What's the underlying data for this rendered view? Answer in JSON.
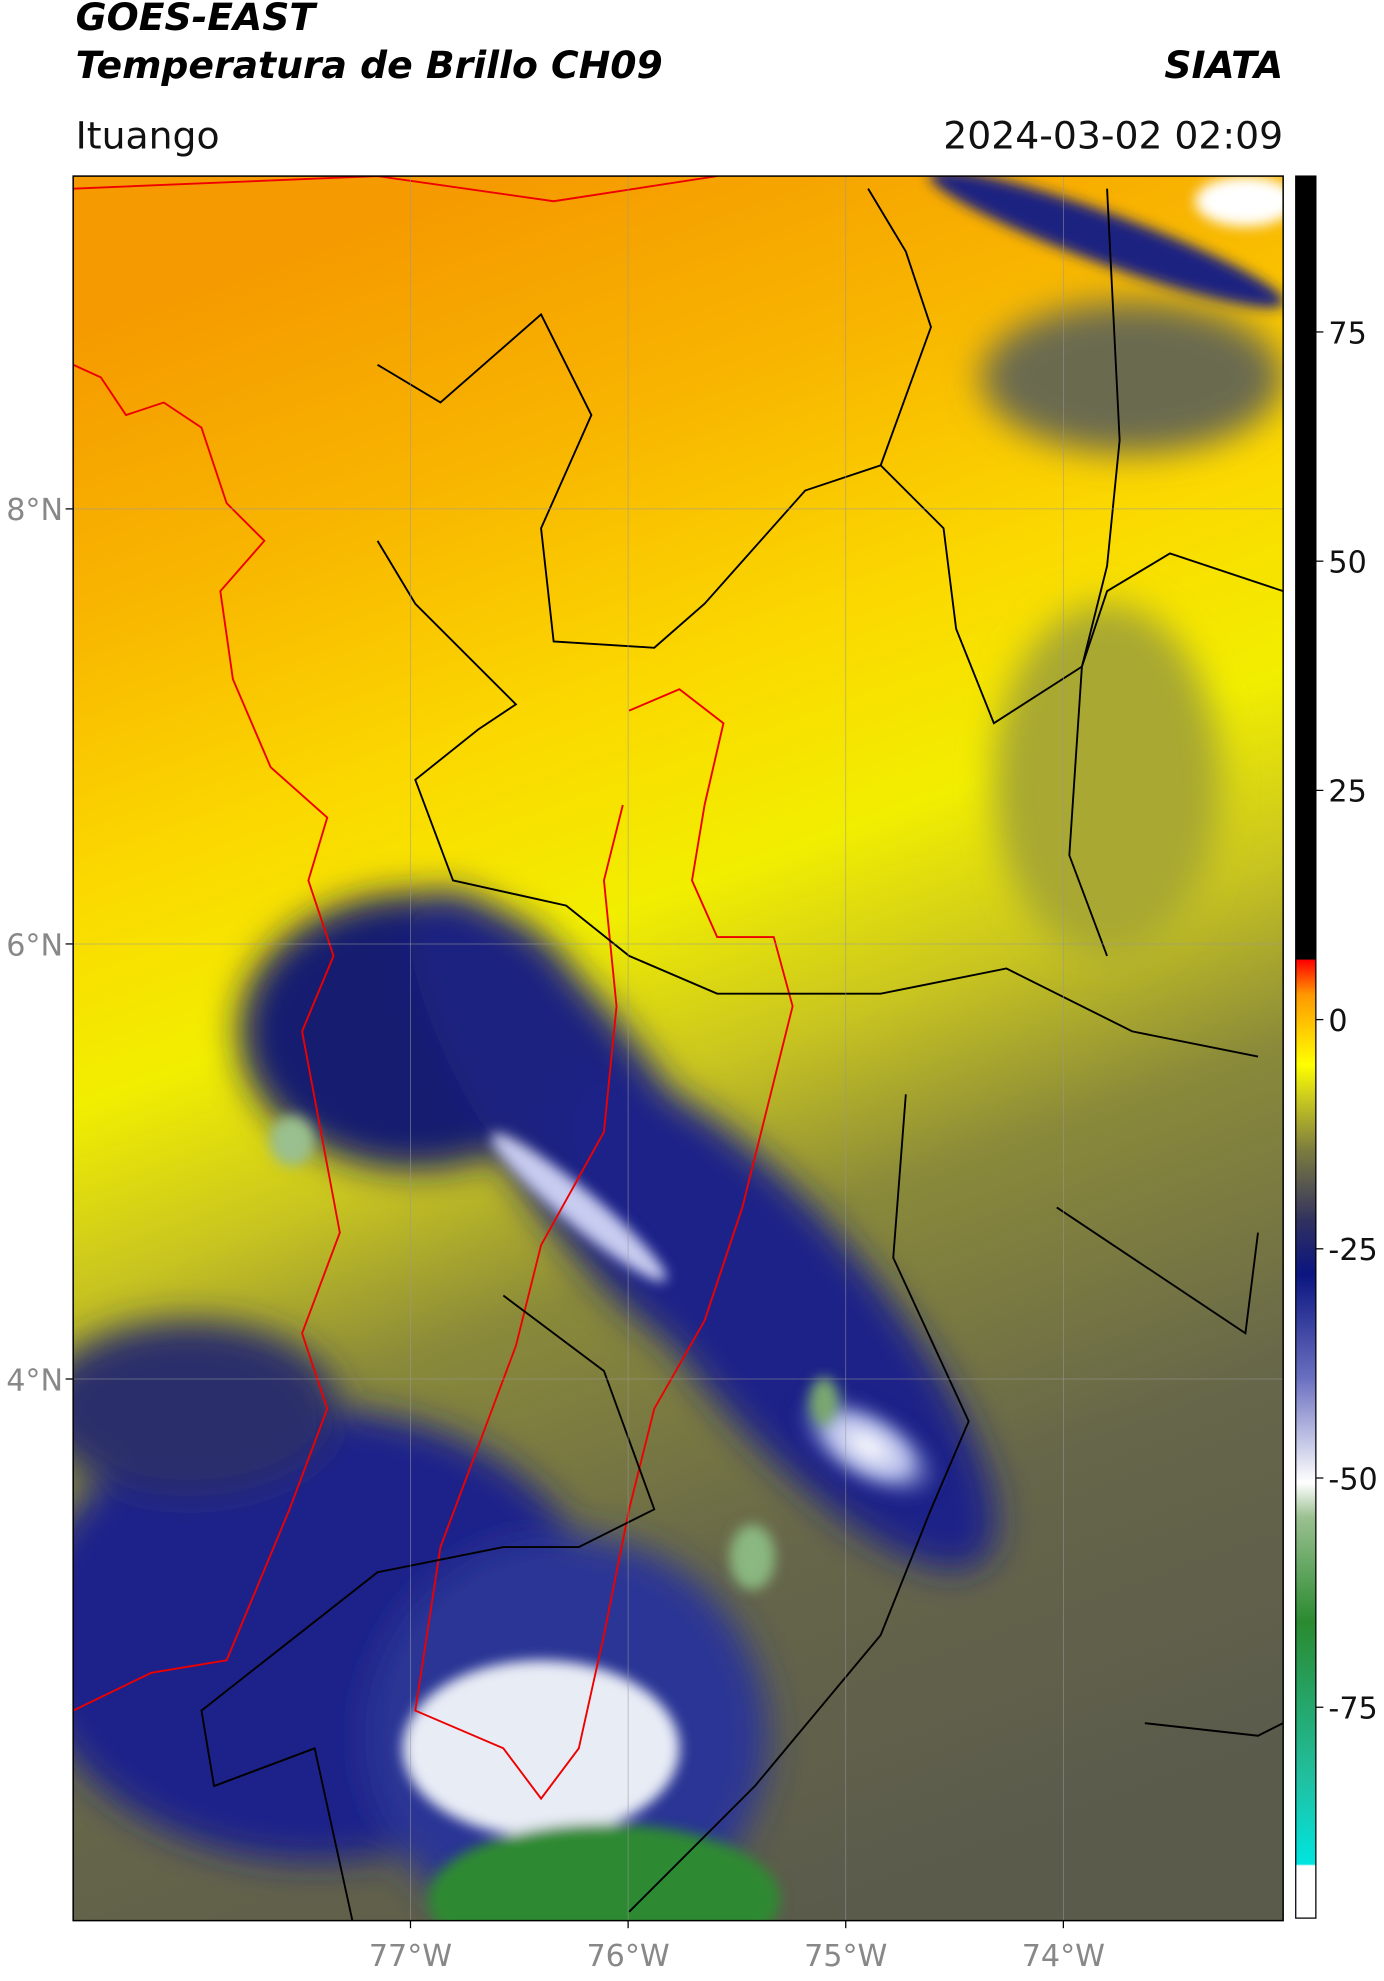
{
  "header": {
    "title": "GOES-EAST",
    "subtitle": "Temperatura de Brillo CH09",
    "source": "SIATA",
    "region": "Ituango",
    "timestamp": "2024-03-02 02:09"
  },
  "map": {
    "xlim": [
      -78.55,
      -72.99
    ],
    "ylim": [
      1.51,
      9.53
    ],
    "xticks": [
      {
        "value": -77,
        "label": "77°W"
      },
      {
        "value": -76,
        "label": "76°W"
      },
      {
        "value": -75,
        "label": "75°W"
      },
      {
        "value": -74,
        "label": "74°W"
      }
    ],
    "yticks": [
      {
        "value": 8,
        "label": "8°N"
      },
      {
        "value": 6,
        "label": "6°N"
      },
      {
        "value": 4,
        "label": "4°N"
      }
    ],
    "grid": true
  },
  "colorbar": {
    "lim": [
      -98,
      92
    ],
    "ticks": [
      -75,
      -50,
      -25,
      0,
      25,
      50,
      75
    ]
  }
}
